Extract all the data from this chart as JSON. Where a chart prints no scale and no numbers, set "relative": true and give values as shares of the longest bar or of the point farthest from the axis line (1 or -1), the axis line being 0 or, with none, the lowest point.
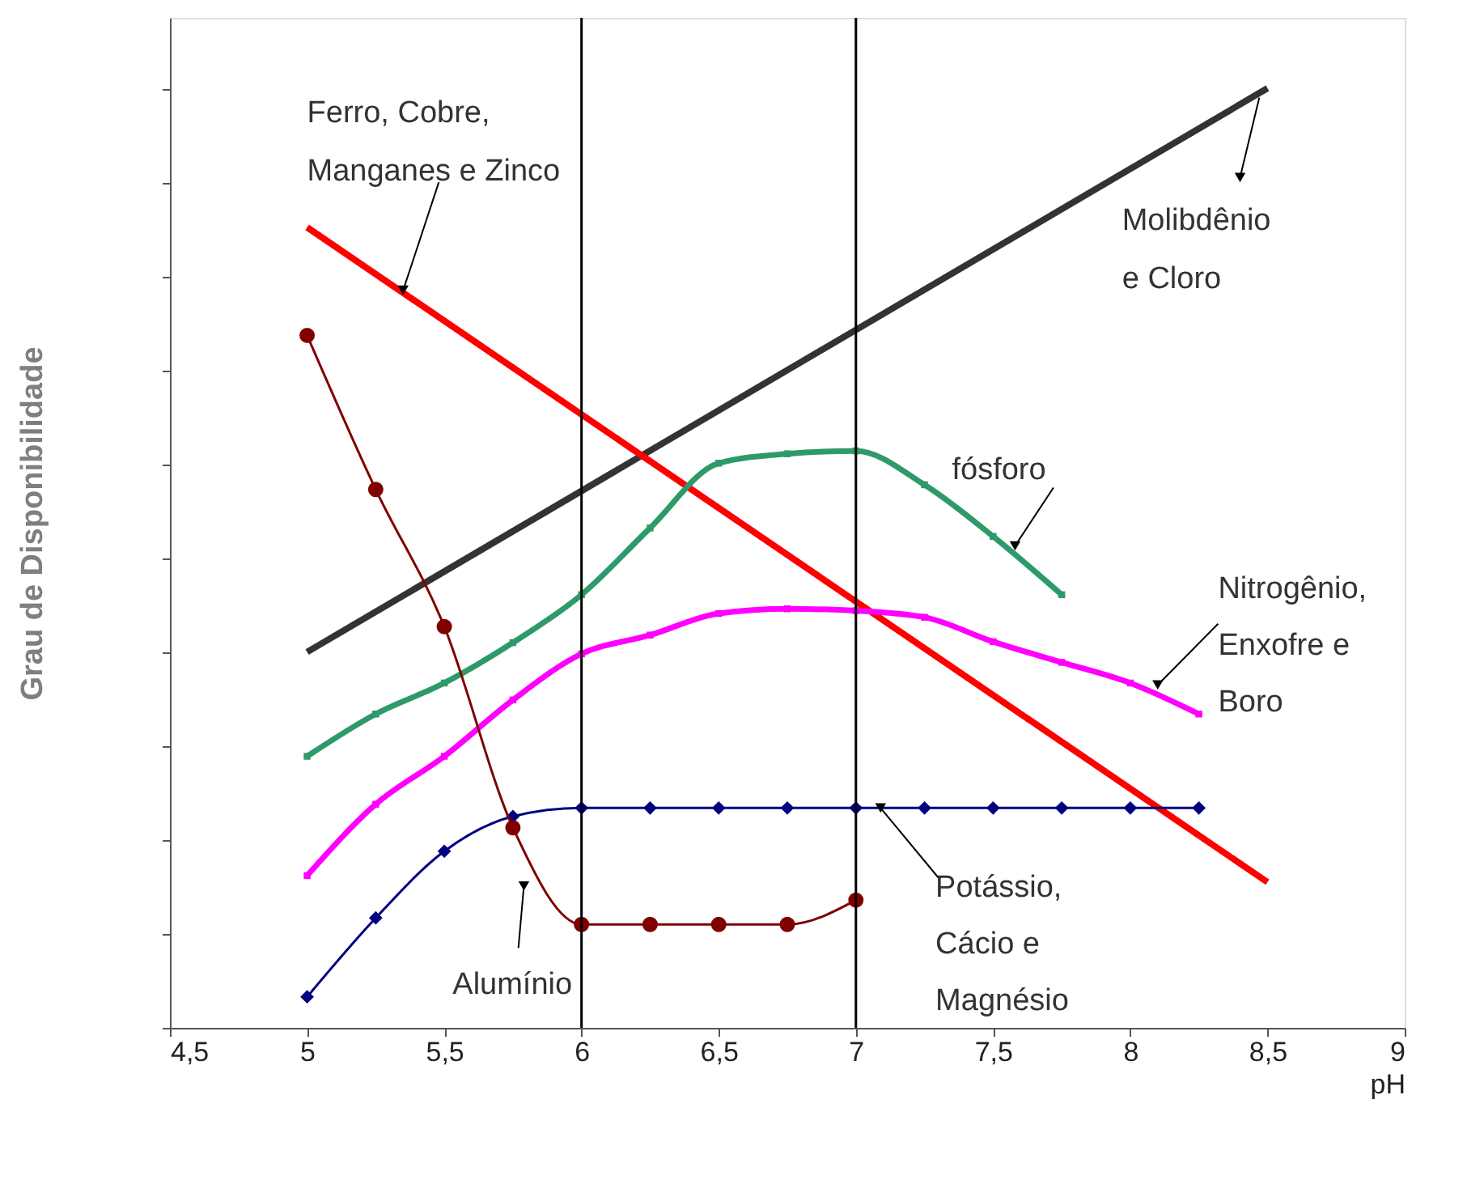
{
  "chart_data": {
    "type": "line",
    "relative": true,
    "xlabel": "pH",
    "ylabel": "Grau de Disponibilidade",
    "xlim": [
      4.5,
      9
    ],
    "xticks": [
      {
        "value": 4.5,
        "label": "4,5"
      },
      5,
      {
        "value": 5.5,
        "label": "5,5"
      },
      6,
      {
        "value": 6.5,
        "label": "6,5"
      },
      7,
      {
        "value": 7.5,
        "label": "7,5"
      },
      8,
      {
        "value": 8.5,
        "label": "8,5"
      },
      9
    ],
    "tick_labels": "x",
    "grid": false,
    "line_style": "solid",
    "ref_lines": [
      {
        "axis": "x",
        "value": 6,
        "color": "#000000"
      },
      {
        "axis": "x",
        "value": 7,
        "color": "#000000"
      }
    ],
    "series": [
      {
        "name": "Molibdênio\ne Cloro",
        "color": "#333333",
        "marker": "none",
        "x": [
          5,
          8.5
        ],
        "values": [
          0.4,
          1.0
        ]
      },
      {
        "name": "Ferro, Cobre,\nManganes e Zinco",
        "color": "#ff0000",
        "marker": "none",
        "x": [
          5,
          8.5
        ],
        "values": [
          0.852,
          0.155
        ]
      },
      {
        "name": "fósforo",
        "color": "#2e9a6a",
        "marker": "square",
        "x": [
          5,
          5.25,
          5.5,
          5.75,
          6,
          6.25,
          6.5,
          6.75,
          7,
          7.25,
          7.5,
          7.75
        ],
        "values": [
          0.289,
          0.334,
          0.367,
          0.41,
          0.461,
          0.532,
          0.601,
          0.611,
          0.614,
          0.578,
          0.523,
          0.461
        ]
      },
      {
        "name": "Nitrogênio,\nEnxofre e\nBoro",
        "color": "#ff00ff",
        "marker": "square",
        "x": [
          5,
          5.25,
          5.5,
          5.75,
          6,
          6.25,
          6.5,
          6.75,
          7,
          7.25,
          7.5,
          7.75,
          8,
          8.25
        ],
        "values": [
          0.162,
          0.238,
          0.289,
          0.349,
          0.398,
          0.418,
          0.441,
          0.446,
          0.444,
          0.437,
          0.411,
          0.389,
          0.367,
          0.334
        ]
      },
      {
        "name": "Potássio,\nCácio e\nMagnésio",
        "color": "#000080",
        "marker": "diamond",
        "x": [
          5,
          5.25,
          5.5,
          5.75,
          6,
          6.25,
          6.5,
          6.75,
          7,
          7.25,
          7.5,
          7.75,
          8,
          8.25
        ],
        "values": [
          0.033,
          0.117,
          0.188,
          0.225,
          0.234,
          0.234,
          0.234,
          0.234,
          0.234,
          0.234,
          0.234,
          0.234,
          0.234,
          0.234
        ]
      },
      {
        "name": "Alumínio",
        "color": "#800000",
        "marker": "circle",
        "x": [
          5,
          5.25,
          5.5,
          5.75,
          6,
          6.25,
          6.5,
          6.75,
          7
        ],
        "values": [
          0.737,
          0.573,
          0.427,
          0.213,
          0.11,
          0.11,
          0.11,
          0.11,
          0.136
        ]
      }
    ]
  }
}
